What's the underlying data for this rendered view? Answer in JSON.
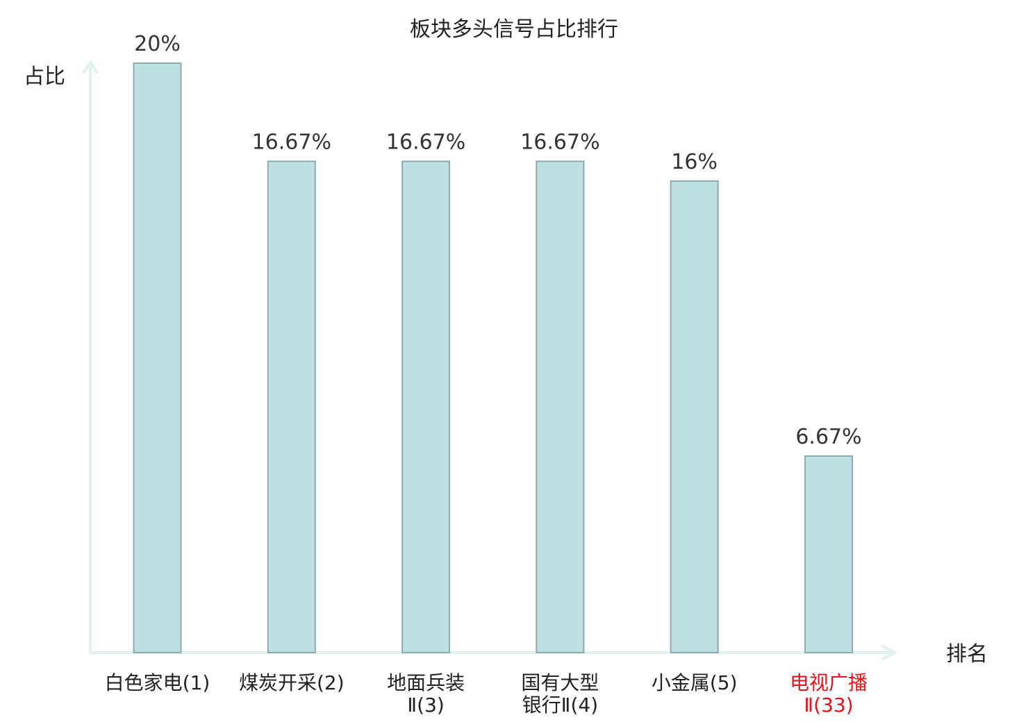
{
  "chart_data": {
    "type": "bar",
    "title": "板块多头信号占比排行",
    "ylabel": "占比",
    "xlabel": "排名",
    "ylim": [
      0,
      20
    ],
    "grid": false,
    "categories": [
      [
        "白色家电(1)"
      ],
      [
        "煤炭开采(2)"
      ],
      [
        "地面兵装",
        "Ⅱ(3)"
      ],
      [
        "国有大型",
        "银行Ⅱ(4)"
      ],
      [
        "小金属(5)"
      ],
      [
        "电视广播",
        "Ⅱ(33)"
      ]
    ],
    "values": [
      20,
      16.67,
      16.67,
      16.67,
      16,
      6.67
    ],
    "value_labels": [
      "20%",
      "16.67%",
      "16.67%",
      "16.67%",
      "16%",
      "6.67%"
    ],
    "highlight_index": 5,
    "colors": {
      "bar_fill": "#bde0e3",
      "bar_stroke": "#8fa9ad",
      "axis": "#e0f3f1",
      "label_text": "#222222",
      "highlight_text": "#e8111a"
    }
  }
}
